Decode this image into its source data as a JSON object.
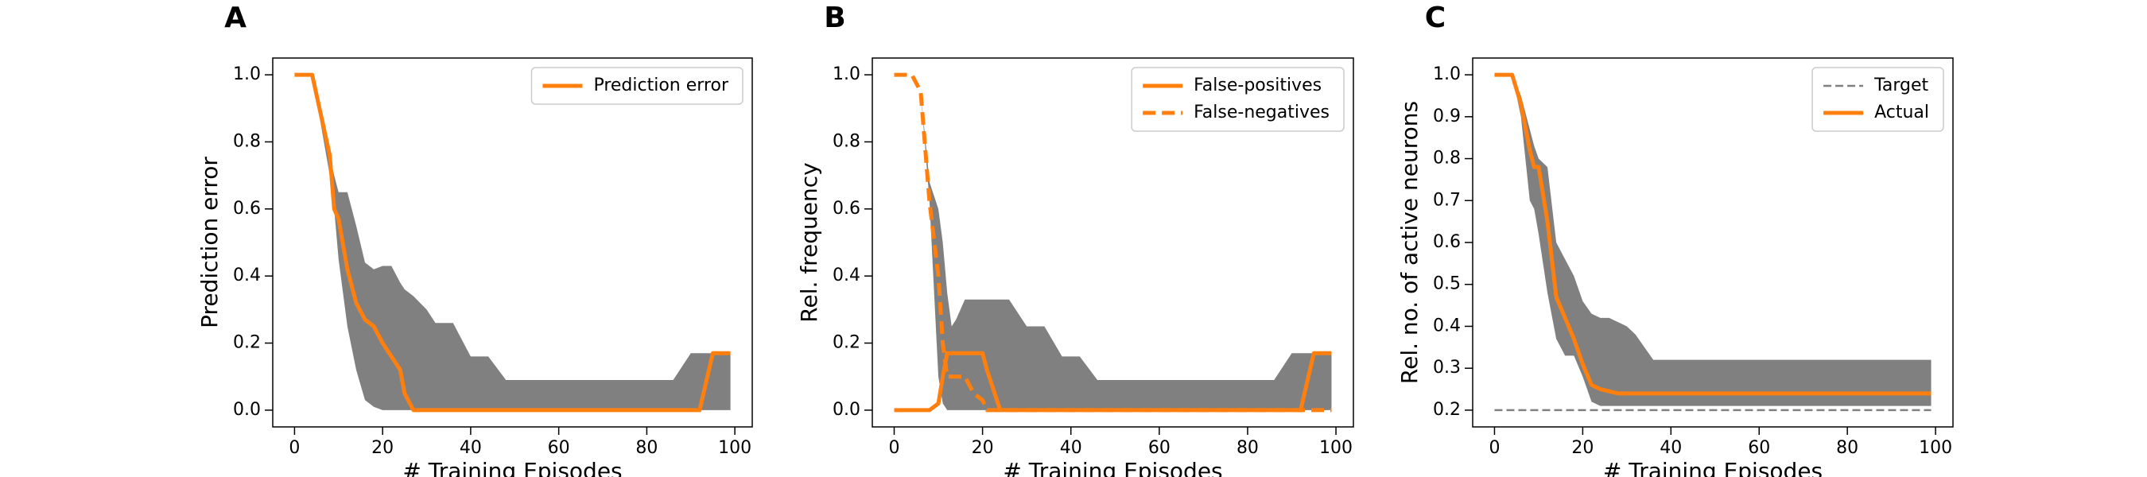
{
  "chart_data": [
    {
      "type": "line",
      "panel_label": "A",
      "xlabel": "# Training Episodes",
      "ylabel": "Prediction error",
      "x": [
        0,
        4,
        8,
        9,
        10,
        12,
        14,
        16,
        18,
        20,
        22,
        24,
        25,
        27,
        30,
        32,
        36,
        40,
        44,
        48,
        86,
        90,
        92,
        95,
        99
      ],
      "series": [
        {
          "name": "Prediction error",
          "color": "#ff7f0e",
          "style": "solid",
          "values": [
            1,
            1,
            0.76,
            0.6,
            0.57,
            0.42,
            0.32,
            0.27,
            0.25,
            0.2,
            0.16,
            0.12,
            0.05,
            0,
            0,
            0,
            0,
            0,
            0,
            0,
            0,
            0,
            0,
            0.17,
            0.17
          ]
        }
      ],
      "band": {
        "color": "#808080",
        "upper": [
          1,
          1,
          0.76,
          0.7,
          0.65,
          0.65,
          0.55,
          0.44,
          0.42,
          0.43,
          0.43,
          0.38,
          0.36,
          0.34,
          0.3,
          0.26,
          0.26,
          0.16,
          0.16,
          0.09,
          0.09,
          0.17,
          0.17,
          0.17,
          0.17
        ],
        "lower": [
          1,
          1,
          0.7,
          0.6,
          0.45,
          0.25,
          0.12,
          0.03,
          0.01,
          0,
          0,
          0,
          0,
          0,
          0,
          0,
          0,
          0,
          0,
          0,
          0,
          0,
          0,
          0,
          0
        ]
      },
      "xlim": [
        -4.95,
        103.95
      ],
      "ylim": [
        -0.05,
        1.05
      ],
      "xticks": [
        0,
        20,
        40,
        60,
        80,
        100
      ],
      "yticks": [
        {
          "value": 0,
          "label": "0.0"
        },
        0.2,
        0.4,
        0.6,
        0.8,
        {
          "value": 1,
          "label": "1.0"
        }
      ],
      "legend": "upper right"
    },
    {
      "type": "line",
      "panel_label": "B",
      "xlabel": "# Training Episodes",
      "ylabel": "Rel. frequency",
      "x": [
        0,
        4,
        6,
        8,
        10,
        11,
        12,
        13,
        14,
        16,
        18,
        20,
        21,
        22,
        24,
        26,
        30,
        34,
        38,
        42,
        46,
        86,
        90,
        92,
        95,
        99
      ],
      "series": [
        {
          "name": "False-positives",
          "color": "#ff7f0e",
          "style": "solid",
          "values": [
            0,
            0,
            0,
            0,
            0.02,
            0.1,
            0.17,
            0.17,
            0.17,
            0.17,
            0.17,
            0.17,
            0.12,
            0.08,
            0,
            0,
            0,
            0,
            0,
            0,
            0,
            0,
            0,
            0,
            0.17,
            0.17
          ]
        },
        {
          "name": "False-negatives",
          "color": "#ff7f0e",
          "style": "dashed",
          "values": [
            1,
            1,
            0.95,
            0.62,
            0.4,
            0.2,
            0.1,
            0.1,
            0.1,
            0.1,
            0.05,
            0.03,
            0,
            0,
            0,
            0,
            0,
            0,
            0,
            0,
            0,
            0,
            0,
            0,
            0,
            0
          ]
        }
      ],
      "band": {
        "color": "#808080",
        "upper": [
          1,
          1,
          0.95,
          0.68,
          0.6,
          0.5,
          0.35,
          0.25,
          0.27,
          0.33,
          0.33,
          0.33,
          0.33,
          0.33,
          0.33,
          0.33,
          0.25,
          0.25,
          0.16,
          0.16,
          0.09,
          0.09,
          0.17,
          0.17,
          0.17,
          0.17
        ],
        "lower": [
          1,
          1,
          0.95,
          0.62,
          0.1,
          0.02,
          0,
          0,
          0,
          0,
          0,
          0,
          0,
          0,
          0,
          0,
          0,
          0,
          0,
          0,
          0,
          0,
          0,
          0,
          0,
          0
        ]
      },
      "xlim": [
        -4.95,
        103.95
      ],
      "ylim": [
        -0.05,
        1.05
      ],
      "xticks": [
        0,
        20,
        40,
        60,
        80,
        100
      ],
      "yticks": [
        {
          "value": 0,
          "label": "0.0"
        },
        0.2,
        0.4,
        0.6,
        0.8,
        {
          "value": 1,
          "label": "1.0"
        }
      ],
      "legend": "upper right"
    },
    {
      "type": "line",
      "panel_label": "C",
      "xlabel": "# Training Episodes",
      "ylabel": "Rel. no. of active neurons",
      "x": [
        0,
        4,
        6,
        8,
        9,
        10,
        12,
        14,
        16,
        18,
        20,
        22,
        24,
        26,
        28,
        30,
        32,
        34,
        36,
        40,
        99
      ],
      "series": [
        {
          "name": "Target",
          "color": "#808080",
          "style": "thin-dashed",
          "values": [
            0.2,
            0.2,
            0.2,
            0.2,
            0.2,
            0.2,
            0.2,
            0.2,
            0.2,
            0.2,
            0.2,
            0.2,
            0.2,
            0.2,
            0.2,
            0.2,
            0.2,
            0.2,
            0.2,
            0.2,
            0.2
          ]
        },
        {
          "name": "Actual",
          "color": "#ff7f0e",
          "style": "solid",
          "values": [
            1,
            1,
            0.93,
            0.82,
            0.78,
            0.78,
            0.65,
            0.47,
            0.42,
            0.37,
            0.31,
            0.26,
            0.25,
            0.245,
            0.24,
            0.24,
            0.24,
            0.24,
            0.24,
            0.24,
            0.24
          ]
        }
      ],
      "band": {
        "color": "#808080",
        "upper": [
          1,
          1,
          0.95,
          0.87,
          0.83,
          0.8,
          0.78,
          0.6,
          0.56,
          0.52,
          0.46,
          0.43,
          0.42,
          0.42,
          0.41,
          0.4,
          0.38,
          0.35,
          0.32,
          0.32,
          0.32
        ],
        "lower": [
          1,
          1,
          0.9,
          0.7,
          0.68,
          0.62,
          0.48,
          0.37,
          0.33,
          0.33,
          0.28,
          0.22,
          0.21,
          0.21,
          0.21,
          0.21,
          0.21,
          0.21,
          0.21,
          0.21,
          0.21
        ]
      },
      "xlim": [
        -4.95,
        103.95
      ],
      "ylim": [
        0.16,
        1.04
      ],
      "xticks": [
        0,
        20,
        40,
        60,
        80,
        100
      ],
      "yticks": [
        0.2,
        0.3,
        0.4,
        0.5,
        0.6,
        0.7,
        0.8,
        0.9,
        {
          "value": 1,
          "label": "1.0"
        }
      ],
      "legend": "upper right"
    }
  ]
}
